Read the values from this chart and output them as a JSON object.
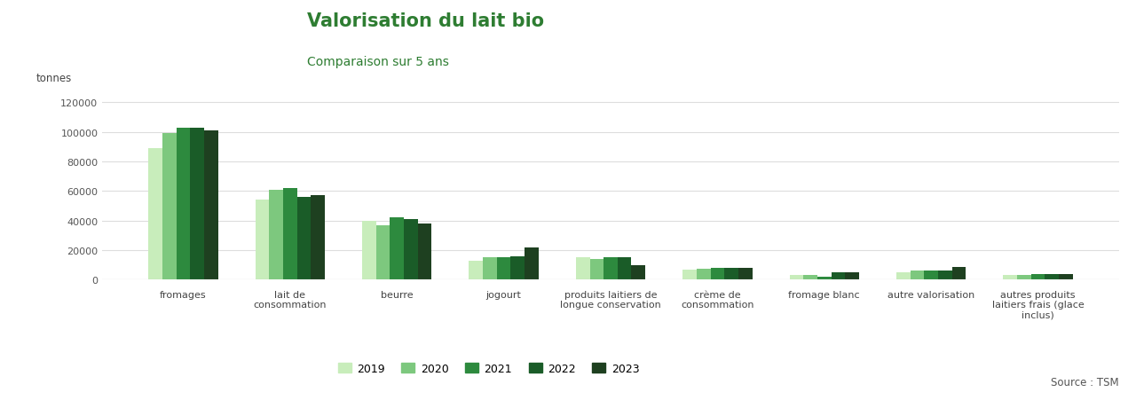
{
  "title": "Valorisation du lait bio",
  "subtitle": "Comparaison sur 5 ans",
  "ylabel": "tonnes",
  "source": "Source : TSM",
  "years": [
    "2019",
    "2020",
    "2021",
    "2022",
    "2023"
  ],
  "bar_colors": [
    "#c8edbb",
    "#7dc87e",
    "#2d8a3e",
    "#1a5c28",
    "#1e4020"
  ],
  "categories": [
    "fromages",
    "lait de\nconsommation",
    "beurre",
    "jogourt",
    "produits laitiers de\nlongue conservation",
    "crème de\nconsommation",
    "fromage blanc",
    "autre valorisation",
    "autres produits\nlaitiers frais (glace\ninclus)"
  ],
  "data": [
    [
      89000,
      99000,
      103000,
      103000,
      101000
    ],
    [
      54000,
      61000,
      62000,
      56000,
      57000
    ],
    [
      40000,
      37000,
      42000,
      41000,
      38000
    ],
    [
      13000,
      15000,
      15000,
      16000,
      22000
    ],
    [
      15000,
      14000,
      15000,
      15000,
      10000
    ],
    [
      7000,
      7500,
      8000,
      8000,
      8000
    ],
    [
      3000,
      3000,
      2000,
      5000,
      5000
    ],
    [
      5000,
      6000,
      6000,
      6000,
      8500
    ],
    [
      3500,
      3500,
      4000,
      4000,
      4000
    ]
  ],
  "ylim": [
    0,
    130000
  ],
  "yticks": [
    0,
    20000,
    40000,
    60000,
    80000,
    100000,
    120000
  ],
  "title_color": "#2e7d32",
  "subtitle_color": "#2e7d32",
  "grid_color": "#dddddd",
  "bar_width": 0.13,
  "title_fontsize": 15,
  "subtitle_fontsize": 10,
  "tick_fontsize": 8,
  "legend_fontsize": 9,
  "source_fontsize": 8.5
}
